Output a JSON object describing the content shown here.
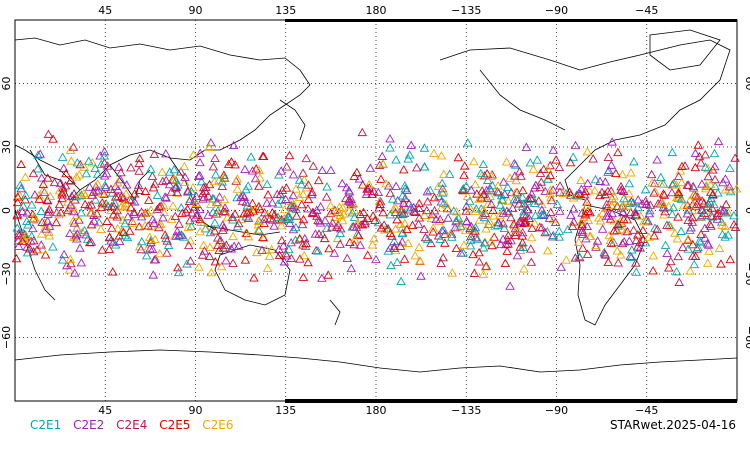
{
  "figure": {
    "lon_ticks": [
      "45",
      "90",
      "135",
      "180",
      "−135",
      "−90",
      "−45"
    ],
    "lat_ticks": [
      "60",
      "30",
      "0",
      "−30",
      "−60"
    ],
    "lon_range": [
      0,
      360
    ],
    "lat_range": [
      -90,
      90
    ],
    "projection": "cylindrical equidistant",
    "central_longitude": 180,
    "grid": "dotted"
  },
  "legend": [
    {
      "id": "C2E1",
      "label": "C2E1",
      "color": "#00a8b0"
    },
    {
      "id": "C2E2",
      "label": "C2E2",
      "color": "#a020c0"
    },
    {
      "id": "C2E4",
      "label": "C2E4",
      "color": "#c01848"
    },
    {
      "id": "C2E5",
      "label": "C2E5",
      "color": "#e00000"
    },
    {
      "id": "C2E6",
      "label": "C2E6",
      "color": "#f0a800"
    }
  ],
  "stamp": "STARwet.2025-04-16",
  "chart_data": {
    "type": "scatter",
    "marker": "triangle-open",
    "xlabel": "",
    "ylabel": "",
    "xlim": [
      0,
      360
    ],
    "ylim": [
      -90,
      90
    ],
    "series": [
      {
        "name": "C2E1",
        "color": "#00a8b0",
        "note_lat_extent": [
          -40,
          40
        ]
      },
      {
        "name": "C2E2",
        "color": "#a020c0",
        "note_lat_extent": [
          -40,
          40
        ]
      },
      {
        "name": "C2E4",
        "color": "#c01848",
        "note_lat_extent": [
          -40,
          40
        ]
      },
      {
        "name": "C2E5",
        "color": "#e00000",
        "note_lat_extent": [
          -40,
          40
        ]
      },
      {
        "name": "C2E6",
        "color": "#f0a800",
        "note_lat_extent": [
          -40,
          40
        ]
      }
    ]
  }
}
